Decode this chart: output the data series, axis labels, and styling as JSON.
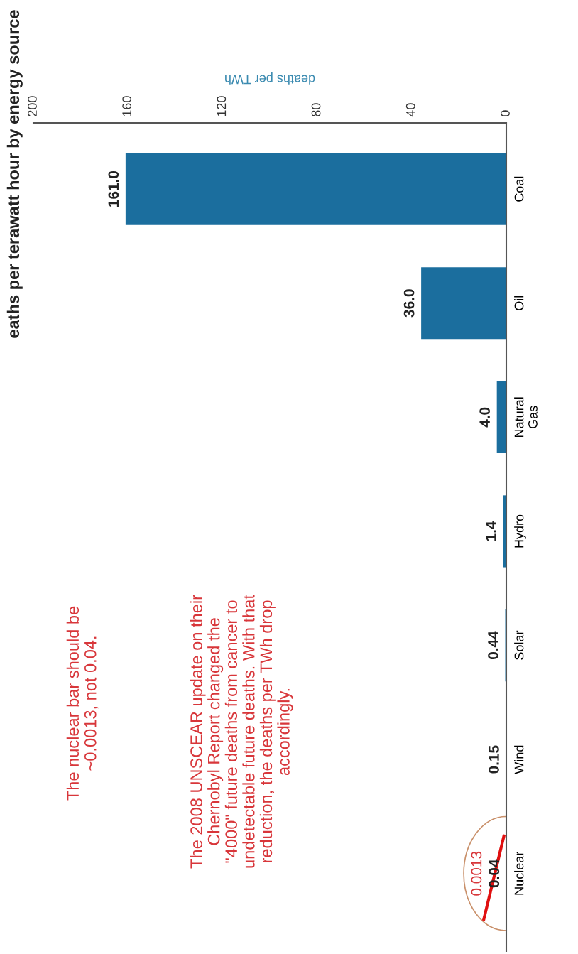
{
  "chart_data": {
    "type": "bar",
    "orientation": "horizontal",
    "title": "eaths per terawatt hour by energy source",
    "xlabel": "deaths per TWh",
    "categories": [
      "Coal",
      "Oil",
      "Natural\nGas",
      "Hydro",
      "Solar",
      "Wind",
      "Nuclear"
    ],
    "values": [
      161.0,
      36.0,
      4.0,
      1.4,
      0.44,
      0.15,
      0.04
    ],
    "value_labels": [
      "161.0",
      "36.0",
      "4.0",
      "1.4",
      "0.44",
      "0.15",
      "0.04"
    ],
    "color": "#1b6e9e",
    "xlim": [
      200,
      0
    ],
    "xticks": [
      200,
      160,
      120,
      80,
      40,
      0
    ],
    "grid": false,
    "annotations": [
      {
        "text": "0.0013",
        "x": 0.0013,
        "y": "Nuclear"
      },
      "The nuclear bar should be\n~0.0013, not 0.04.",
      "The 2008 UNSCEAR update on their\nChernobyl Report changed the\n\"4000\" future deaths from cancer to\nundetectable future deaths. With that\nreduction, the deaths per TWh drop\naccordingly."
    ]
  }
}
